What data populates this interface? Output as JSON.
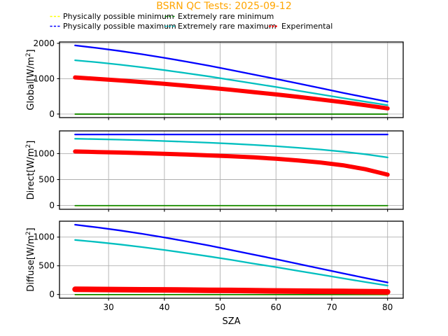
{
  "header": {
    "title": "BSRN QC Tests: 2025-09-12",
    "title_color": "#ffa500"
  },
  "legend": {
    "items": [
      {
        "label": "Physically possible minimum",
        "color": "#ffff00",
        "style": "dashed"
      },
      {
        "label": "Physically possible maximum",
        "color": "#0000ff",
        "style": "dashed"
      },
      {
        "label": "Extremely rare minimum",
        "color": "#008000",
        "style": "dashed"
      },
      {
        "label": "Extremely rare maximum",
        "color": "#00bfbf",
        "style": "dashed"
      },
      {
        "label": "Experimental",
        "color": "#ff0000",
        "style": "dotted"
      }
    ]
  },
  "xaxis": {
    "label": "SZA",
    "ticks": [
      30,
      40,
      50,
      60,
      70,
      80
    ],
    "lim": [
      21.2,
      82.8
    ]
  },
  "chart_data": [
    {
      "type": "line",
      "ylabel_pre": "Global[W/m",
      "ylabel_sup": "2",
      "ylabel_post": "]",
      "ylim": [
        -101,
        2038
      ],
      "yticks": [
        0,
        1000,
        2000
      ],
      "grid": true,
      "x": [
        24,
        28,
        32,
        36,
        40,
        44,
        48,
        52,
        56,
        60,
        64,
        68,
        72,
        76,
        80
      ],
      "series": [
        {
          "name": "Physically possible minimum",
          "color": "#ffff00",
          "values": [
            -4,
            -4,
            -4,
            -4,
            -4,
            -4,
            -4,
            -4,
            -4,
            -4,
            -4,
            -4,
            -4,
            -4,
            -4
          ]
        },
        {
          "name": "Extremely rare minimum",
          "color": "#008000",
          "values": [
            -2,
            -2,
            -2,
            -2,
            -2,
            -2,
            -2,
            -2,
            -2,
            -2,
            -2,
            -2,
            -2,
            -2,
            -2
          ]
        },
        {
          "name": "Physically possible maximum",
          "color": "#0000ff",
          "values": [
            1941,
            1867,
            1784,
            1691,
            1590,
            1481,
            1366,
            1244,
            1117,
            993,
            863,
            732,
            601,
            474,
            351
          ]
        },
        {
          "name": "Extremely rare maximum",
          "color": "#00bfbf",
          "values": [
            1522,
            1464,
            1397,
            1323,
            1242,
            1155,
            1063,
            965,
            863,
            765,
            660,
            555,
            451,
            349,
            251
          ]
        },
        {
          "name": "Experimental",
          "color": "#ff0000",
          "values": [
            1035,
            995,
            950,
            905,
            855,
            800,
            745,
            685,
            620,
            555,
            485,
            410,
            335,
            250,
            160
          ]
        }
      ]
    },
    {
      "type": "line",
      "ylabel_pre": "Direct[W/m",
      "ylabel_sup": "2",
      "ylabel_post": "]",
      "ylim": [
        -73,
        1437
      ],
      "yticks": [
        0,
        500,
        1000
      ],
      "grid": true,
      "x": [
        24,
        28,
        32,
        36,
        40,
        44,
        48,
        52,
        56,
        60,
        64,
        68,
        72,
        76,
        80
      ],
      "series": [
        {
          "name": "Physically possible minimum",
          "color": "#ffff00",
          "values": [
            -4,
            -4,
            -4,
            -4,
            -4,
            -4,
            -4,
            -4,
            -4,
            -4,
            -4,
            -4,
            -4,
            -4,
            -4
          ]
        },
        {
          "name": "Extremely rare minimum",
          "color": "#008000",
          "values": [
            -2,
            -2,
            -2,
            -2,
            -2,
            -2,
            -2,
            -2,
            -2,
            -2,
            -2,
            -2,
            -2,
            -2,
            -2
          ]
        },
        {
          "name": "Physically possible maximum",
          "color": "#0000ff",
          "values": [
            1368,
            1368,
            1368,
            1368,
            1368,
            1368,
            1368,
            1368,
            1368,
            1368,
            1368,
            1368,
            1368,
            1368,
            1368
          ]
        },
        {
          "name": "Extremely rare maximum",
          "color": "#00bfbf",
          "values": [
            1286,
            1278,
            1268,
            1256,
            1242,
            1227,
            1209,
            1190,
            1167,
            1142,
            1112,
            1078,
            1037,
            988,
            926
          ]
        },
        {
          "name": "Experimental",
          "color": "#ff0000",
          "values": [
            1040,
            1030,
            1020,
            1008,
            995,
            982,
            965,
            948,
            928,
            900,
            868,
            828,
            775,
            700,
            595
          ]
        }
      ]
    },
    {
      "type": "line",
      "ylabel_pre": "Diffuse[W/m",
      "ylabel_sup": "2",
      "ylabel_post": "]",
      "ylim": [
        -65,
        1277
      ],
      "yticks": [
        0,
        500,
        1000
      ],
      "grid": true,
      "x": [
        24,
        28,
        32,
        36,
        40,
        44,
        48,
        52,
        56,
        60,
        64,
        68,
        72,
        76,
        80
      ],
      "series": [
        {
          "name": "Physically possible minimum",
          "color": "#ffff00",
          "values": [
            -4,
            -4,
            -4,
            -4,
            -4,
            -4,
            -4,
            -4,
            -4,
            -4,
            -4,
            -4,
            -4,
            -4,
            -4
          ]
        },
        {
          "name": "Extremely rare minimum",
          "color": "#008000",
          "values": [
            -2,
            -2,
            -2,
            -2,
            -2,
            -2,
            -2,
            -2,
            -2,
            -2,
            -2,
            -2,
            -2,
            -2,
            -2
          ]
        },
        {
          "name": "Physically possible maximum",
          "color": "#0000ff",
          "values": [
            1216,
            1169,
            1116,
            1058,
            994,
            925,
            852,
            774,
            694,
            616,
            533,
            450,
            368,
            287,
            209
          ]
        },
        {
          "name": "Extremely rare maximum",
          "color": "#00bfbf",
          "values": [
            950,
            914,
            872,
            826,
            775,
            721,
            663,
            602,
            538,
            477,
            411,
            346,
            281,
            217,
            155
          ]
        },
        {
          "name": "Experimental",
          "color": "#ff0000",
          "values": [
            90,
            88,
            85,
            82,
            80,
            77,
            73,
            70,
            66,
            62,
            58,
            56,
            53,
            50,
            45
          ]
        }
      ]
    }
  ]
}
